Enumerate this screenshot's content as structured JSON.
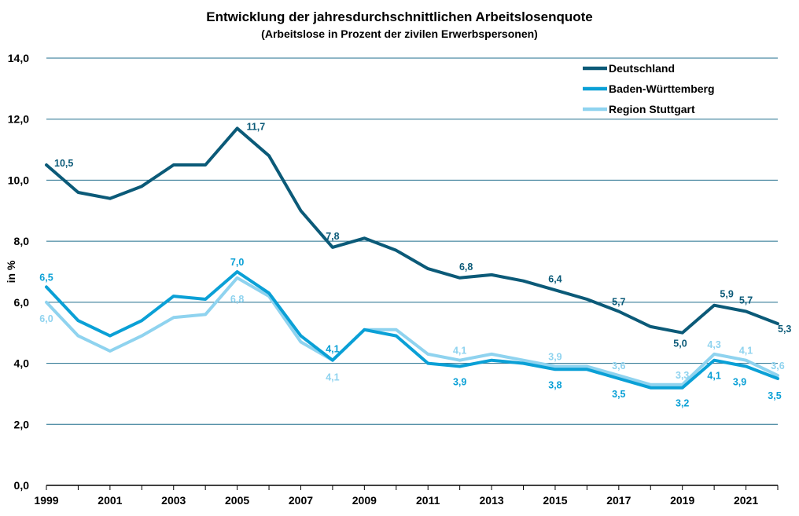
{
  "chart_data": {
    "type": "line",
    "title": "Entwicklung der jahresdurchschnittlichen Arbeitslosenquote",
    "subtitle": "(Arbeitslose in Prozent der zivilen Erwerbspersonen)",
    "ylabel": "in %",
    "xlabel": "",
    "ylim": [
      0,
      14
    ],
    "y_ticks": [
      "0,0",
      "2,0",
      "4,0",
      "6,0",
      "8,0",
      "10,0",
      "12,0",
      "14,0"
    ],
    "x": [
      1999,
      2000,
      2001,
      2002,
      2003,
      2004,
      2005,
      2006,
      2007,
      2008,
      2009,
      2010,
      2011,
      2012,
      2013,
      2014,
      2015,
      2016,
      2017,
      2018,
      2019,
      2020,
      2021,
      2022
    ],
    "x_ticks": [
      "1999",
      "2001",
      "2003",
      "2005",
      "2007",
      "2009",
      "2011",
      "2013",
      "2015",
      "2017",
      "2019",
      "2021"
    ],
    "grid": true,
    "legend_position": "top-right",
    "series": [
      {
        "name": "Deutschland",
        "color": "#0b5a78",
        "values": [
          10.5,
          9.6,
          9.4,
          9.8,
          10.5,
          10.5,
          11.7,
          10.8,
          9.0,
          7.8,
          8.1,
          7.7,
          7.1,
          6.8,
          6.9,
          6.7,
          6.4,
          6.1,
          5.7,
          5.2,
          5.0,
          5.9,
          5.7,
          5.3
        ],
        "labels": [
          {
            "year": 1999,
            "text": "10,5"
          },
          {
            "year": 2005,
            "text": "11,7"
          },
          {
            "year": 2008,
            "text": "7,8"
          },
          {
            "year": 2012,
            "text": "6,8"
          },
          {
            "year": 2015,
            "text": "6,4"
          },
          {
            "year": 2017,
            "text": "5,7"
          },
          {
            "year": 2019,
            "text": "5,0"
          },
          {
            "year": 2020,
            "text": "5,9"
          },
          {
            "year": 2021,
            "text": "5,7"
          },
          {
            "year": 2022,
            "text": "5,3"
          }
        ]
      },
      {
        "name": "Baden-Württemberg",
        "color": "#0aa0d6",
        "values": [
          6.5,
          5.4,
          4.9,
          5.4,
          6.2,
          6.1,
          7.0,
          6.3,
          4.9,
          4.1,
          5.1,
          4.9,
          4.0,
          3.9,
          4.1,
          4.0,
          3.8,
          3.8,
          3.5,
          3.2,
          3.2,
          4.1,
          3.9,
          3.5
        ],
        "labels": [
          {
            "year": 1999,
            "text": "6,5"
          },
          {
            "year": 2005,
            "text": "7,0"
          },
          {
            "year": 2008,
            "text": "4,1"
          },
          {
            "year": 2012,
            "text": "3,9"
          },
          {
            "year": 2015,
            "text": "3,8"
          },
          {
            "year": 2017,
            "text": "3,5"
          },
          {
            "year": 2019,
            "text": "3,2"
          },
          {
            "year": 2020,
            "text": "4,1"
          },
          {
            "year": 2021,
            "text": "3,9"
          },
          {
            "year": 2022,
            "text": "3,5"
          }
        ]
      },
      {
        "name": "Region Stuttgart",
        "color": "#8fd3ef",
        "values": [
          6.0,
          4.9,
          4.4,
          4.9,
          5.5,
          5.6,
          6.8,
          6.2,
          4.7,
          4.1,
          5.1,
          5.1,
          4.3,
          4.1,
          4.3,
          4.1,
          3.9,
          3.9,
          3.6,
          3.3,
          3.3,
          4.3,
          4.1,
          3.6
        ],
        "labels": [
          {
            "year": 1999,
            "text": "6,0"
          },
          {
            "year": 2005,
            "text": "6,8"
          },
          {
            "year": 2008,
            "text": "4,1"
          },
          {
            "year": 2012,
            "text": "4,1"
          },
          {
            "year": 2015,
            "text": "3,9"
          },
          {
            "year": 2017,
            "text": "3,6"
          },
          {
            "year": 2019,
            "text": "3,3"
          },
          {
            "year": 2020,
            "text": "4,3"
          },
          {
            "year": 2021,
            "text": "4,1"
          },
          {
            "year": 2022,
            "text": "3,6"
          }
        ]
      }
    ]
  }
}
